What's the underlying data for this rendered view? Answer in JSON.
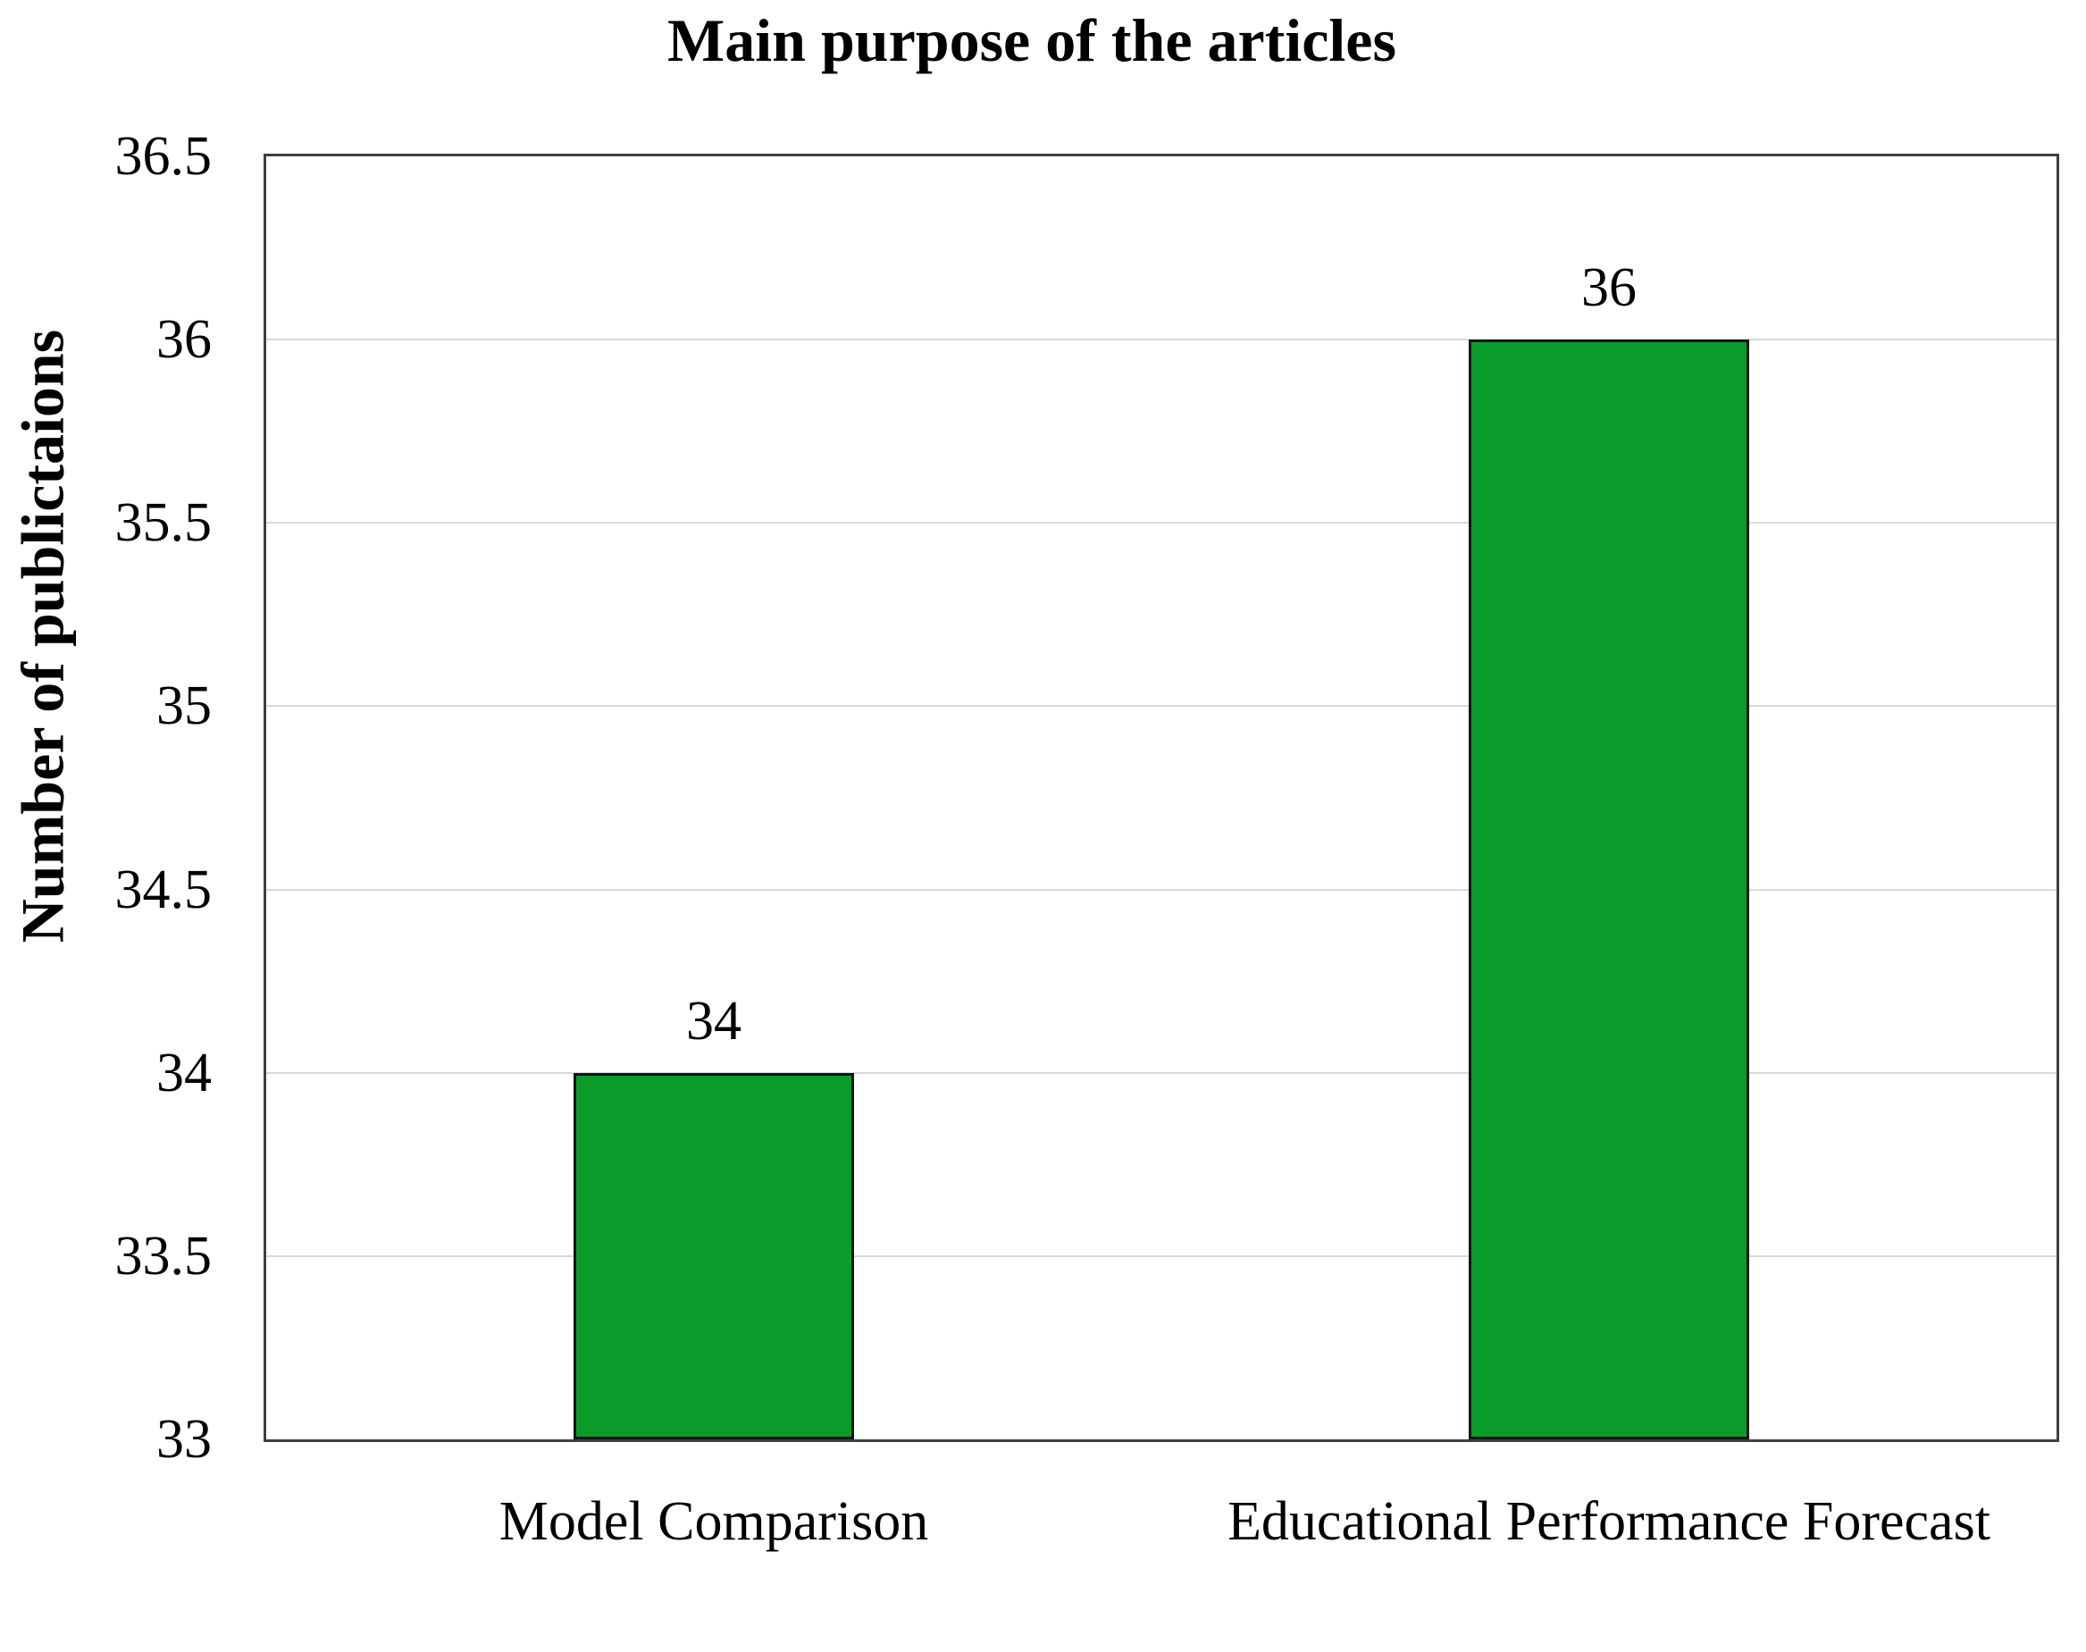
{
  "title": "Main purpose of the articles",
  "colors": {
    "background": "#ffffff",
    "bar_fill": "#0a9c2b",
    "bar_border": "#151515",
    "gridline": "#d9d9d9",
    "plot_border": "#3f3f3f",
    "text": "#000000"
  },
  "chart_data": {
    "type": "bar",
    "title": "Main purpose of the articles",
    "categories": [
      "Model Comparison",
      "Educational Performance Forecast"
    ],
    "values": [
      34,
      36
    ],
    "data_labels": [
      "34",
      "36"
    ],
    "xlabel": "",
    "ylabel": "Number of publictaions",
    "ylim": [
      33,
      36.5
    ],
    "ytick_step": 0.5,
    "yticks": [
      33,
      33.5,
      34,
      34.5,
      35,
      35.5,
      36,
      36.5
    ],
    "grid": "horizontal-only",
    "legend": "none",
    "bar_color": "#0a9c2b"
  }
}
